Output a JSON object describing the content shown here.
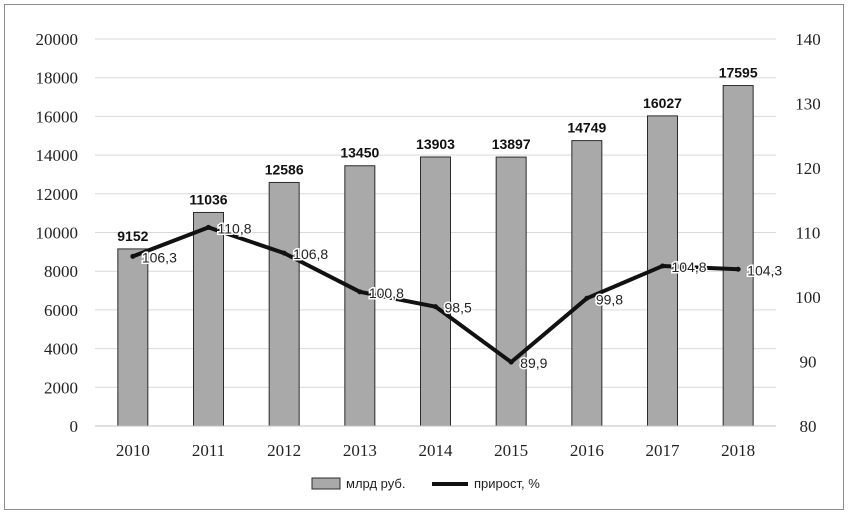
{
  "chart_data": {
    "type": "bar",
    "categories": [
      "2010",
      "2011",
      "2012",
      "2013",
      "2014",
      "2015",
      "2016",
      "2017",
      "2018"
    ],
    "series": [
      {
        "name": "млрд руб.",
        "type": "bar",
        "axis": "left",
        "values": [
          9152,
          11036,
          12586,
          13450,
          13903,
          13897,
          14749,
          16027,
          17595
        ],
        "labels": [
          "9152",
          "11036",
          "12586",
          "13450",
          "13903",
          "13897",
          "14749",
          "16027",
          "17595"
        ],
        "color": "#a9a9a9"
      },
      {
        "name": "прирост, %",
        "type": "line",
        "axis": "right",
        "values": [
          106.3,
          110.8,
          106.8,
          100.8,
          98.5,
          89.9,
          99.8,
          104.8,
          104.3
        ],
        "labels": [
          "106,3",
          "110,8",
          "106,8",
          "100,8",
          "98,5",
          "89,9",
          "99,8",
          "104,8",
          "104,3"
        ],
        "color": "#111111"
      }
    ],
    "y_left": {
      "range": [
        0,
        20000
      ],
      "ticks": [
        "0",
        "2000",
        "4000",
        "6000",
        "8000",
        "10000",
        "12000",
        "14000",
        "16000",
        "18000",
        "20000"
      ]
    },
    "y_right": {
      "range": [
        80,
        140
      ],
      "ticks": [
        "80",
        "90",
        "100",
        "110",
        "120",
        "130",
        "140"
      ]
    },
    "grid": true,
    "legend_position": "bottom"
  }
}
